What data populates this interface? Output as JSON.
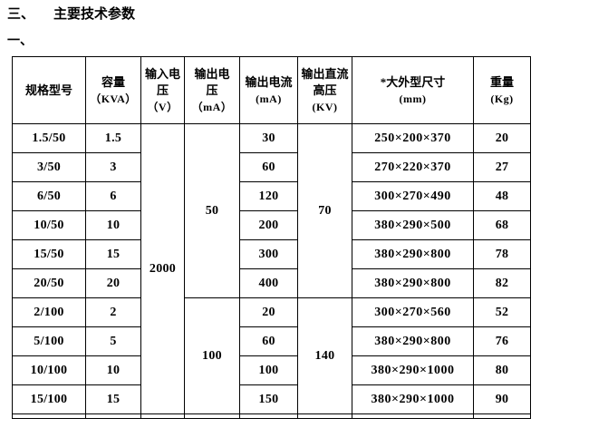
{
  "heading": {
    "number": "三、",
    "text": "主要技术参数"
  },
  "subheading": "一、",
  "table": {
    "headers": [
      {
        "title": [
          "规格型号"
        ],
        "unit": ""
      },
      {
        "title": [
          "容量"
        ],
        "unit": "（KVA）"
      },
      {
        "title": [
          "输入电",
          "压"
        ],
        "unit": "（V）"
      },
      {
        "title": [
          "输出电",
          "压"
        ],
        "unit": "（mA）"
      },
      {
        "title": [
          "输出电流"
        ],
        "unit": "(mA)"
      },
      {
        "title": [
          "输出直流",
          "高压"
        ],
        "unit": "(KV)"
      },
      {
        "title": [
          "*大外型尺寸"
        ],
        "unit": "(mm)"
      },
      {
        "title": [
          "重量"
        ],
        "unit": "(Kg)"
      }
    ],
    "input_voltage": "2000",
    "groups": [
      {
        "output_voltage": "50",
        "dc_high_voltage": "70",
        "rows": [
          {
            "model": "1.5/50",
            "capacity": "1.5",
            "output_current": "30",
            "dimensions": "250×200×370",
            "weight": "20"
          },
          {
            "model": "3/50",
            "capacity": "3",
            "output_current": "60",
            "dimensions": "270×220×370",
            "weight": "27"
          },
          {
            "model": "6/50",
            "capacity": "6",
            "output_current": "120",
            "dimensions": "300×270×490",
            "weight": "48"
          },
          {
            "model": "10/50",
            "capacity": "10",
            "output_current": "200",
            "dimensions": "380×290×500",
            "weight": "68"
          },
          {
            "model": "15/50",
            "capacity": "15",
            "output_current": "300",
            "dimensions": "380×290×800",
            "weight": "78"
          },
          {
            "model": "20/50",
            "capacity": "20",
            "output_current": "400",
            "dimensions": "380×290×800",
            "weight": "82"
          }
        ]
      },
      {
        "output_voltage": "100",
        "dc_high_voltage": "140",
        "rows": [
          {
            "model": "2/100",
            "capacity": "2",
            "output_current": "20",
            "dimensions": "300×270×560",
            "weight": "52"
          },
          {
            "model": "5/100",
            "capacity": "5",
            "output_current": "60",
            "dimensions": "380×290×800",
            "weight": "76"
          },
          {
            "model": "10/100",
            "capacity": "10",
            "output_current": "100",
            "dimensions": "380×290×1000",
            "weight": "80"
          },
          {
            "model": "15/100",
            "capacity": "15",
            "output_current": "150",
            "dimensions": "380×290×1000",
            "weight": "90"
          }
        ]
      }
    ],
    "colors": {
      "border": "#000000",
      "text": "#000000",
      "background": "#ffffff"
    }
  }
}
